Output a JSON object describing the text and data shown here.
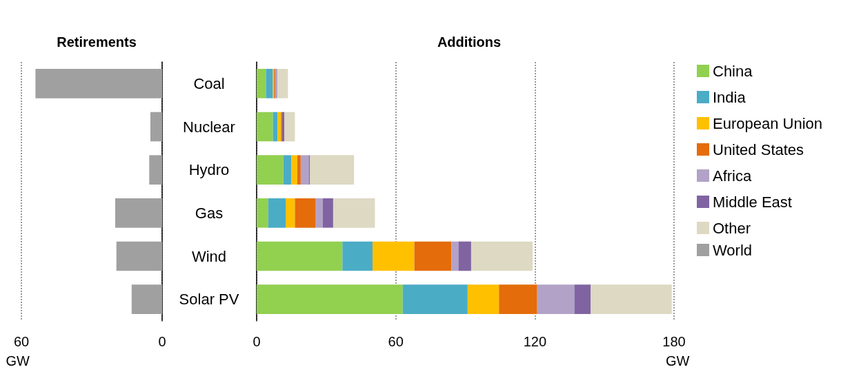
{
  "chart_data": [
    {
      "type": "bar",
      "title": "Retirements",
      "orientation": "horizontal",
      "categories": [
        "Coal",
        "Nuclear",
        "Hydro",
        "Gas",
        "Wind",
        "Solar PV"
      ],
      "xlabel": "GW",
      "xlim": [
        60,
        0
      ],
      "xticks": [
        60,
        0
      ],
      "grid": "x",
      "legend": "right",
      "series": [
        {
          "name": "World",
          "color": "#a0a0a0",
          "values": [
            54,
            5,
            5.5,
            20,
            19.5,
            13
          ]
        }
      ]
    },
    {
      "type": "bar",
      "title": "Additions",
      "orientation": "horizontal",
      "stacked": true,
      "categories": [
        "Coal",
        "Nuclear",
        "Hydro",
        "Gas",
        "Wind",
        "Solar PV"
      ],
      "xlabel": "GW",
      "xlim": [
        0,
        180
      ],
      "xticks": [
        0,
        60,
        120,
        180
      ],
      "grid": "x",
      "legend": "right",
      "tick_labels": "x",
      "series": [
        {
          "name": "China",
          "color": "#92d050",
          "values": [
            4,
            7,
            11.5,
            5,
            37,
            63
          ]
        },
        {
          "name": "India",
          "color": "#4bacc6",
          "values": [
            3,
            2,
            3.5,
            7.5,
            13,
            28
          ]
        },
        {
          "name": "European Union",
          "color": "#ffc000",
          "values": [
            0.5,
            1.5,
            2.5,
            4,
            18,
            13.5
          ]
        },
        {
          "name": "United States",
          "color": "#e46c0a",
          "values": [
            0.5,
            0.5,
            1.5,
            9,
            16,
            16.5
          ]
        },
        {
          "name": "Africa",
          "color": "#b3a2c7",
          "values": [
            1,
            0,
            3.5,
            3,
            3,
            16
          ]
        },
        {
          "name": "Middle East",
          "color": "#8064a2",
          "values": [
            0,
            1,
            0.5,
            4.5,
            5.5,
            7
          ]
        },
        {
          "name": "Other",
          "color": "#ddd9c3",
          "values": [
            4.5,
            4.5,
            19,
            18,
            26.5,
            35
          ]
        }
      ]
    }
  ]
}
